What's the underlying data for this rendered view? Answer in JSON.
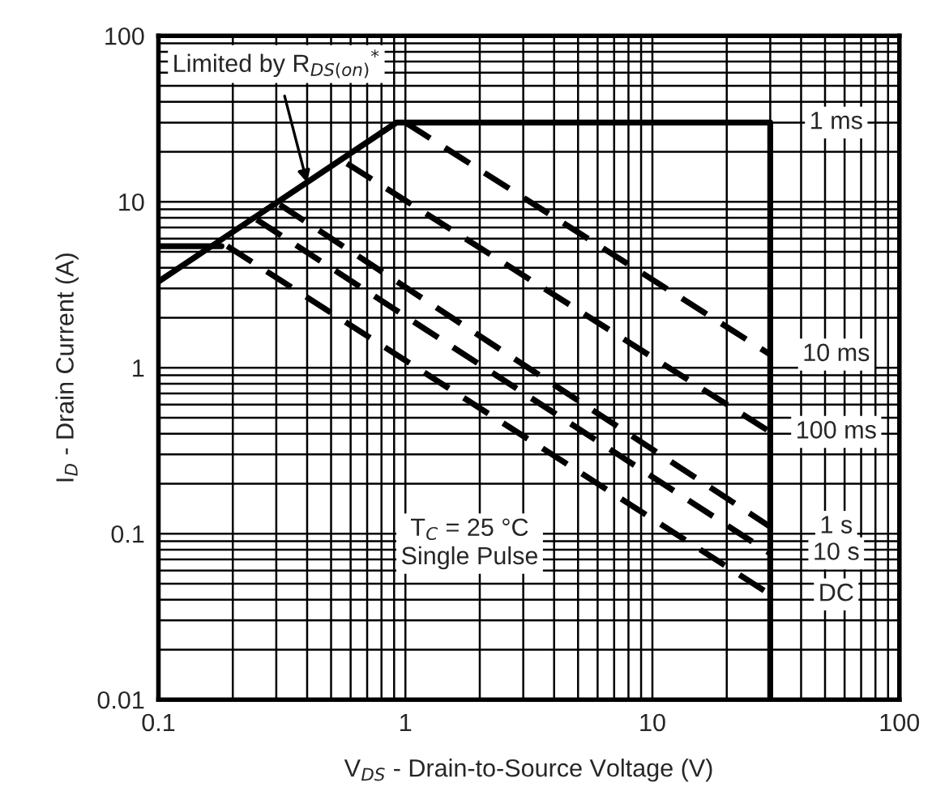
{
  "chart_data": {
    "type": "line",
    "xlabel": "V$_{DS}$ - Drain-to-Source Voltage (V)",
    "ylabel": "I$_{D}$ - Drain Current (A)",
    "log": "xy",
    "xlim": [
      0.1,
      100
    ],
    "ylim": [
      0.01,
      100
    ],
    "xticks": [
      0.1,
      1,
      10,
      100
    ],
    "yticks": [
      0.01,
      0.1,
      1,
      10,
      100
    ],
    "grid": true,
    "marker": "none",
    "series": [
      {
        "name": "1 ms",
        "color": "#000000",
        "line_style": "solid",
        "x": [
          0.1,
          0.92,
          30,
          30
        ],
        "values": [
          3.3,
          30,
          30,
          0.01
        ]
      },
      {
        "color": "#000000",
        "line_style": "solid",
        "x": [
          0.1,
          0.18
        ],
        "values": [
          5.4,
          5.4
        ]
      },
      {
        "name": "10 ms",
        "color": "#000000",
        "line_style": "dashed",
        "x": [
          1.0,
          30
        ],
        "values": [
          30,
          1.2
        ]
      },
      {
        "name": "100 ms",
        "color": "#000000",
        "line_style": "dashed",
        "x": [
          0.58,
          30
        ],
        "values": [
          17,
          0.41
        ]
      },
      {
        "name": "1 s",
        "color": "#000000",
        "line_style": "dashed",
        "x": [
          0.31,
          30
        ],
        "values": [
          9.6,
          0.11
        ]
      },
      {
        "name": "10 s",
        "color": "#000000",
        "line_style": "dashed",
        "x": [
          0.25,
          30
        ],
        "values": [
          7.8,
          0.076
        ]
      },
      {
        "name": "DC",
        "color": "#000000",
        "line_style": "dashed",
        "x": [
          0.19,
          30
        ],
        "values": [
          5.4,
          0.043
        ]
      }
    ],
    "annotations": [
      {
        "text": "Limited by R$_{DS(on)}$$^{*}$",
        "x": 0.4,
        "y": 13
      },
      "T$_{C}$ = 25 °C\nSingle Pulse"
    ]
  }
}
